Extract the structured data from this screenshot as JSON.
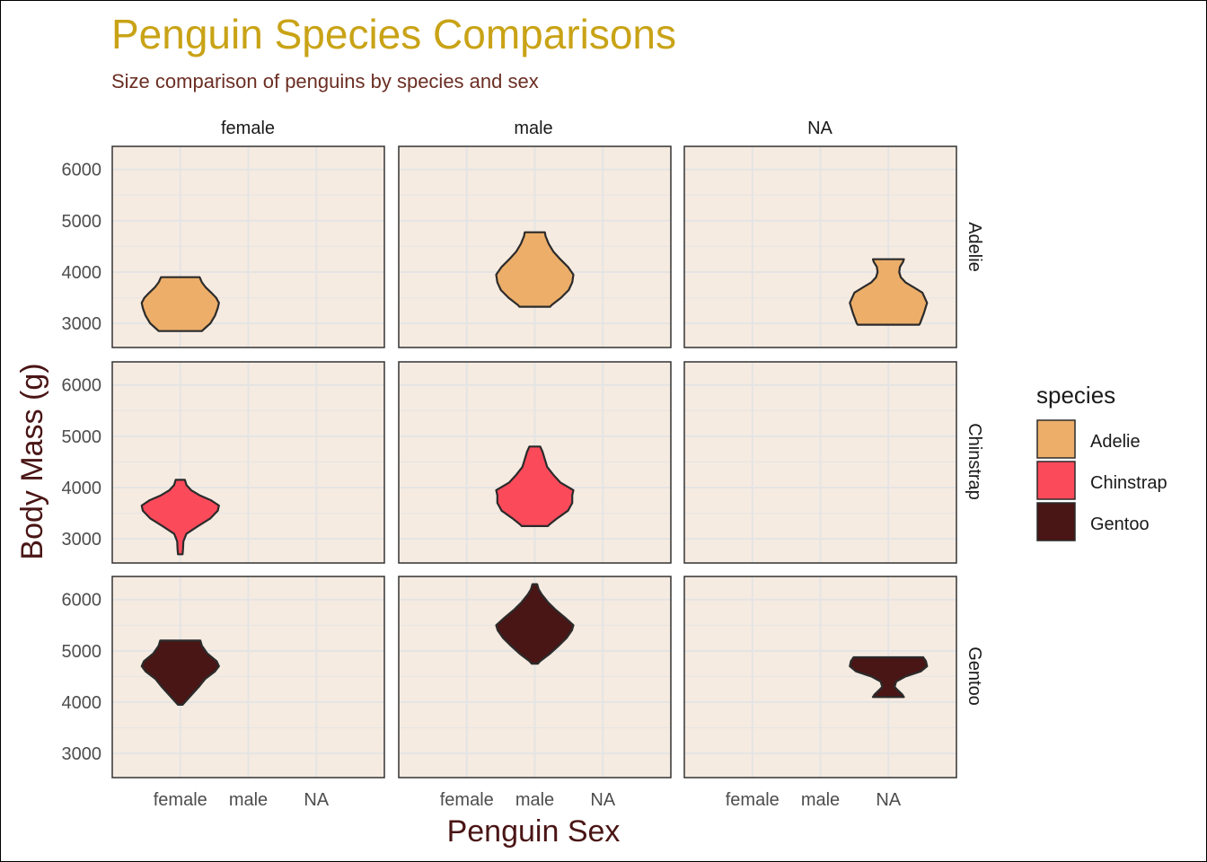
{
  "colors": {
    "title": "#C9A316",
    "subtitle": "#6B2E23",
    "axis_title": "#4A1515",
    "panel_bg": "#F6EBE1",
    "grid": "#E4E4E4",
    "outline": "#2B2B2B"
  },
  "chart_data": {
    "type": "violin",
    "title": "Penguin Species Comparisons",
    "subtitle": "Size comparison of penguins by species and sex",
    "xlabel": "Penguin Sex",
    "ylabel": "Body Mass (g)",
    "ylim": [
      2530,
      6450
    ],
    "yticks": [
      "3000",
      "4000",
      "5000",
      "6000"
    ],
    "ytick_values": [
      3000,
      4000,
      5000,
      6000
    ],
    "categories": [
      "female",
      "male",
      "NA"
    ],
    "facet_cols": [
      "female",
      "male",
      "NA"
    ],
    "facet_rows": [
      "Adelie",
      "Chinstrap",
      "Gentoo"
    ],
    "grid": true,
    "legend": {
      "title": "species",
      "position": "right",
      "items": [
        {
          "label": "Adelie",
          "color": "#ECAE69"
        },
        {
          "label": "Chinstrap",
          "color": "#FB4A5A"
        },
        {
          "label": "Gentoo",
          "color": "#4A1515"
        }
      ]
    },
    "series": [
      {
        "species": "Adelie",
        "sex": "female",
        "color": "#ECAE69",
        "min": 2850,
        "max": 3900,
        "profile": [
          [
            2850,
            0.56
          ],
          [
            2880,
            0.6
          ],
          [
            3000,
            0.78
          ],
          [
            3150,
            0.9
          ],
          [
            3300,
            0.97
          ],
          [
            3400,
            1.0
          ],
          [
            3500,
            0.93
          ],
          [
            3600,
            0.8
          ],
          [
            3700,
            0.66
          ],
          [
            3800,
            0.56
          ],
          [
            3900,
            0.5
          ]
        ]
      },
      {
        "species": "Adelie",
        "sex": "male",
        "color": "#ECAE69",
        "min": 3325,
        "max": 4775,
        "profile": [
          [
            3325,
            0.4
          ],
          [
            3360,
            0.44
          ],
          [
            3500,
            0.68
          ],
          [
            3650,
            0.88
          ],
          [
            3800,
            0.97
          ],
          [
            3950,
            1.0
          ],
          [
            4100,
            0.86
          ],
          [
            4250,
            0.66
          ],
          [
            4400,
            0.48
          ],
          [
            4550,
            0.36
          ],
          [
            4700,
            0.28
          ],
          [
            4775,
            0.26
          ]
        ]
      },
      {
        "species": "Adelie",
        "sex": "NA",
        "color": "#ECAE69",
        "min": 2975,
        "max": 4250,
        "profile": [
          [
            2975,
            0.8
          ],
          [
            3000,
            0.82
          ],
          [
            3200,
            0.92
          ],
          [
            3400,
            1.0
          ],
          [
            3600,
            0.88
          ],
          [
            3700,
            0.66
          ],
          [
            3800,
            0.44
          ],
          [
            3900,
            0.32
          ],
          [
            4000,
            0.28
          ],
          [
            4100,
            0.3
          ],
          [
            4200,
            0.38
          ],
          [
            4250,
            0.4
          ]
        ]
      },
      {
        "species": "Chinstrap",
        "sex": "female",
        "color": "#FB4A5A",
        "min": 2700,
        "max": 4150,
        "profile": [
          [
            2700,
            0.06
          ],
          [
            2800,
            0.07
          ],
          [
            2950,
            0.08
          ],
          [
            3100,
            0.16
          ],
          [
            3250,
            0.46
          ],
          [
            3400,
            0.78
          ],
          [
            3550,
            0.97
          ],
          [
            3650,
            1.0
          ],
          [
            3750,
            0.8
          ],
          [
            3850,
            0.5
          ],
          [
            3950,
            0.28
          ],
          [
            4050,
            0.16
          ],
          [
            4150,
            0.12
          ]
        ]
      },
      {
        "species": "Chinstrap",
        "sex": "male",
        "color": "#FB4A5A",
        "min": 3250,
        "max": 4800,
        "profile": [
          [
            3250,
            0.34
          ],
          [
            3280,
            0.38
          ],
          [
            3400,
            0.58
          ],
          [
            3550,
            0.86
          ],
          [
            3700,
            0.97
          ],
          [
            3850,
            0.97
          ],
          [
            3950,
            1.0
          ],
          [
            4100,
            0.66
          ],
          [
            4250,
            0.48
          ],
          [
            4400,
            0.32
          ],
          [
            4550,
            0.26
          ],
          [
            4700,
            0.2
          ],
          [
            4800,
            0.14
          ]
        ]
      },
      {
        "species": "Gentoo",
        "sex": "female",
        "color": "#4A1515",
        "min": 3950,
        "max": 5200,
        "profile": [
          [
            3950,
            0.06
          ],
          [
            4000,
            0.12
          ],
          [
            4150,
            0.3
          ],
          [
            4300,
            0.48
          ],
          [
            4450,
            0.64
          ],
          [
            4600,
            0.9
          ],
          [
            4700,
            1.0
          ],
          [
            4800,
            0.94
          ],
          [
            4950,
            0.7
          ],
          [
            5100,
            0.56
          ],
          [
            5200,
            0.52
          ]
        ]
      },
      {
        "species": "Gentoo",
        "sex": "male",
        "color": "#4A1515",
        "min": 4750,
        "max": 6300,
        "profile": [
          [
            4750,
            0.08
          ],
          [
            4800,
            0.14
          ],
          [
            4950,
            0.4
          ],
          [
            5100,
            0.62
          ],
          [
            5250,
            0.82
          ],
          [
            5400,
            0.96
          ],
          [
            5500,
            1.0
          ],
          [
            5650,
            0.78
          ],
          [
            5800,
            0.54
          ],
          [
            5950,
            0.34
          ],
          [
            6100,
            0.18
          ],
          [
            6200,
            0.1
          ],
          [
            6300,
            0.06
          ]
        ]
      },
      {
        "species": "Gentoo",
        "sex": "NA",
        "color": "#4A1515",
        "min": 4100,
        "max": 4875,
        "profile": [
          [
            4100,
            0.4
          ],
          [
            4150,
            0.36
          ],
          [
            4250,
            0.22
          ],
          [
            4300,
            0.16
          ],
          [
            4400,
            0.2
          ],
          [
            4500,
            0.44
          ],
          [
            4600,
            0.84
          ],
          [
            4700,
            1.0
          ],
          [
            4800,
            0.97
          ],
          [
            4875,
            0.9
          ]
        ]
      }
    ]
  }
}
